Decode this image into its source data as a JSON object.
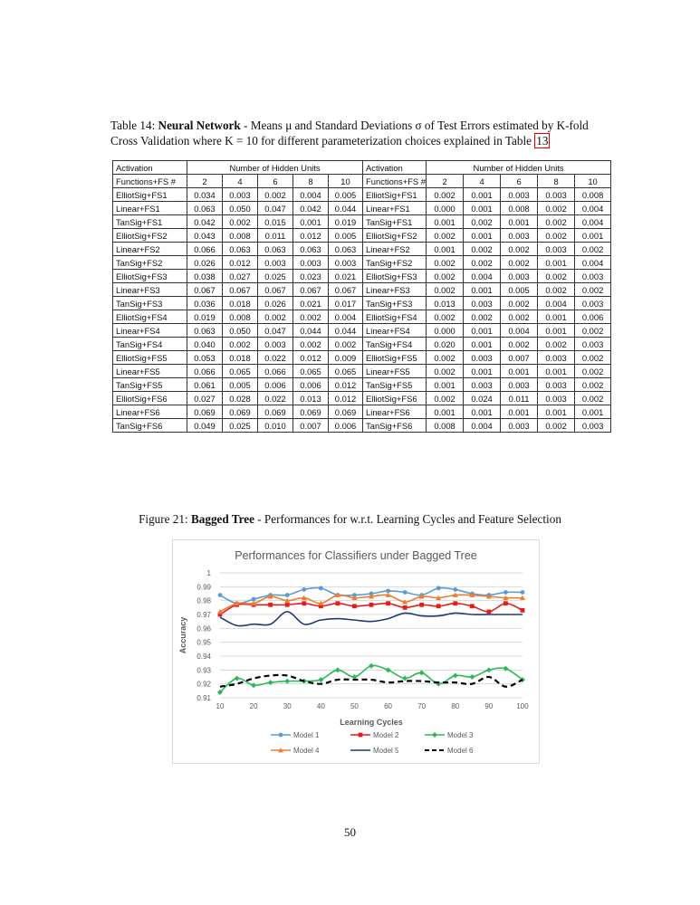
{
  "table_caption": {
    "label": "Table 14:",
    "bold": "Neural Network",
    "text": "- Means μ and Standard Deviations σ of Test Errors estimated by K-fold Cross Validation where K = 10 for different parameterization choices explained in Table",
    "ref": "13"
  },
  "table": {
    "header1": [
      "Activation",
      "Number of Hidden Units",
      "Activation",
      "Number of Hidden Units"
    ],
    "header2": [
      "Functions+FS #",
      "2",
      "4",
      "6",
      "8",
      "10",
      "Functions+FS #",
      "2",
      "4",
      "6",
      "8",
      "10"
    ],
    "rows": [
      [
        "ElliotSig+FS1",
        "0.034",
        "0.003",
        "0.002",
        "0.004",
        "0.005",
        "ElliotSig+FS1",
        "0.002",
        "0.001",
        "0.003",
        "0.003",
        "0.008"
      ],
      [
        "Linear+FS1",
        "0.063",
        "0.050",
        "0.047",
        "0.042",
        "0.044",
        "Linear+FS1",
        "0.000",
        "0.001",
        "0.008",
        "0.002",
        "0.004"
      ],
      [
        "TanSig+FS1",
        "0.042",
        "0.002",
        "0.015",
        "0.001",
        "0.019",
        "TanSig+FS1",
        "0.001",
        "0.002",
        "0.001",
        "0.002",
        "0.004"
      ],
      [
        "ElliotSig+FS2",
        "0.043",
        "0.008",
        "0.011",
        "0.012",
        "0.005",
        "ElliotSig+FS2",
        "0.002",
        "0.001",
        "0.003",
        "0.002",
        "0.001"
      ],
      [
        "Linear+FS2",
        "0.066",
        "0.063",
        "0.063",
        "0.063",
        "0.063",
        "Linear+FS2",
        "0.001",
        "0.002",
        "0.002",
        "0.003",
        "0.002"
      ],
      [
        "TanSig+FS2",
        "0.026",
        "0.012",
        "0.003",
        "0.003",
        "0.003",
        "TanSig+FS2",
        "0.002",
        "0.002",
        "0.002",
        "0.001",
        "0.004"
      ],
      [
        "ElliotSig+FS3",
        "0.038",
        "0.027",
        "0.025",
        "0.023",
        "0.021",
        "ElliotSig+FS3",
        "0.002",
        "0.004",
        "0.003",
        "0.002",
        "0.003"
      ],
      [
        "Linear+FS3",
        "0.067",
        "0.067",
        "0.067",
        "0.067",
        "0.067",
        "Linear+FS3",
        "0.002",
        "0.001",
        "0.005",
        "0.002",
        "0.002"
      ],
      [
        "TanSig+FS3",
        "0.036",
        "0.018",
        "0.026",
        "0.021",
        "0.017",
        "TanSig+FS3",
        "0.013",
        "0.003",
        "0.002",
        "0.004",
        "0.003"
      ],
      [
        "ElliotSig+FS4",
        "0.019",
        "0.008",
        "0.002",
        "0.002",
        "0.004",
        "ElliotSig+FS4",
        "0.002",
        "0.002",
        "0.002",
        "0.001",
        "0.006"
      ],
      [
        "Linear+FS4",
        "0.063",
        "0.050",
        "0.047",
        "0.044",
        "0.044",
        "Linear+FS4",
        "0.000",
        "0.001",
        "0.004",
        "0.001",
        "0.002"
      ],
      [
        "TanSig+FS4",
        "0.040",
        "0.002",
        "0.003",
        "0.002",
        "0.002",
        "TanSig+FS4",
        "0.020",
        "0.001",
        "0.002",
        "0.002",
        "0.003"
      ],
      [
        "ElliotSig+FS5",
        "0.053",
        "0.018",
        "0.022",
        "0.012",
        "0.009",
        "ElliotSig+FS5",
        "0.002",
        "0.003",
        "0.007",
        "0.003",
        "0.002"
      ],
      [
        "Linear+FS5",
        "0.066",
        "0.065",
        "0.066",
        "0.065",
        "0.065",
        "Linear+FS5",
        "0.002",
        "0.001",
        "0.001",
        "0.001",
        "0.002"
      ],
      [
        "TanSig+FS5",
        "0.061",
        "0.005",
        "0.006",
        "0.006",
        "0.012",
        "TanSig+FS5",
        "0.001",
        "0.003",
        "0.003",
        "0.003",
        "0.002"
      ],
      [
        "ElliotSig+FS6",
        "0.027",
        "0.028",
        "0.022",
        "0.013",
        "0.012",
        "ElliotSig+FS6",
        "0.002",
        "0.024",
        "0.011",
        "0.003",
        "0.002"
      ],
      [
        "Linear+FS6",
        "0.069",
        "0.069",
        "0.069",
        "0.069",
        "0.069",
        "Linear+FS6",
        "0.001",
        "0.001",
        "0.001",
        "0.001",
        "0.001"
      ],
      [
        "TanSig+FS6",
        "0.049",
        "0.025",
        "0.010",
        "0.007",
        "0.006",
        "TanSig+FS6",
        "0.008",
        "0.004",
        "0.003",
        "0.002",
        "0.003"
      ]
    ]
  },
  "figure_caption": {
    "label": "Figure 21:",
    "bold": "Bagged Tree",
    "text": "- Performances for w.r.t. Learning Cycles and Feature Selection"
  },
  "chart_data": {
    "type": "line",
    "title": "Performances for Classifiers under Bagged Tree",
    "xlabel": "Learning Cycles",
    "ylabel": "Accuracy",
    "x": [
      10,
      15,
      20,
      25,
      30,
      35,
      40,
      45,
      50,
      55,
      60,
      65,
      70,
      75,
      80,
      85,
      90,
      95,
      100
    ],
    "x_ticks": [
      "10",
      "20",
      "30",
      "40",
      "50",
      "60",
      "70",
      "80",
      "90",
      "100"
    ],
    "x_tick_values": [
      10,
      20,
      30,
      40,
      50,
      60,
      70,
      80,
      90,
      100
    ],
    "y_ticks": [
      "0.91",
      "0.92",
      "0.93",
      "0.94",
      "0.95",
      "0.96",
      "0.97",
      "0.98",
      "0.99",
      "1"
    ],
    "y_tick_values": [
      0.91,
      0.92,
      0.93,
      0.94,
      0.95,
      0.96,
      0.97,
      0.98,
      0.99,
      1
    ],
    "xlim": [
      10,
      100
    ],
    "ylim": [
      0.91,
      1
    ],
    "grid": true,
    "legend_position": "bottom",
    "series": [
      {
        "name": "Model 1",
        "color": "#5b9bd5",
        "marker": "circle",
        "dash": "solid",
        "values": [
          0.984,
          0.978,
          0.981,
          0.984,
          0.984,
          0.988,
          0.989,
          0.984,
          0.984,
          0.985,
          0.987,
          0.986,
          0.984,
          0.989,
          0.988,
          0.985,
          0.984,
          0.986,
          0.986
        ]
      },
      {
        "name": "Model 2",
        "color": "#e51c1c",
        "marker": "square",
        "dash": "solid",
        "values": [
          0.97,
          0.977,
          0.977,
          0.977,
          0.977,
          0.978,
          0.976,
          0.978,
          0.976,
          0.977,
          0.978,
          0.975,
          0.977,
          0.976,
          0.978,
          0.976,
          0.972,
          0.978,
          0.973
        ]
      },
      {
        "name": "Model 3",
        "color": "#2eb85c",
        "marker": "diamond",
        "dash": "solid",
        "values": [
          0.914,
          0.924,
          0.919,
          0.921,
          0.922,
          0.922,
          0.923,
          0.93,
          0.925,
          0.933,
          0.93,
          0.924,
          0.928,
          0.92,
          0.926,
          0.925,
          0.93,
          0.931,
          0.923
        ]
      },
      {
        "name": "Model 4",
        "color": "#ed7d31",
        "marker": "triangle",
        "dash": "solid",
        "values": [
          0.972,
          0.978,
          0.978,
          0.983,
          0.98,
          0.982,
          0.978,
          0.984,
          0.982,
          0.983,
          0.984,
          0.979,
          0.983,
          0.982,
          0.984,
          0.984,
          0.983,
          0.982,
          0.982
        ]
      },
      {
        "name": "Model 5",
        "color": "#1f3a7a",
        "marker": "none",
        "dash": "solid",
        "values": [
          0.968,
          0.962,
          0.963,
          0.963,
          0.972,
          0.963,
          0.966,
          0.967,
          0.966,
          0.965,
          0.967,
          0.971,
          0.969,
          0.969,
          0.971,
          0.97,
          0.97,
          0.97,
          0.97
        ]
      },
      {
        "name": "Model 6",
        "color": "#000000",
        "marker": "none",
        "dash": "dashed",
        "values": [
          0.918,
          0.92,
          0.924,
          0.926,
          0.926,
          0.922,
          0.92,
          0.923,
          0.923,
          0.923,
          0.921,
          0.922,
          0.922,
          0.921,
          0.921,
          0.92,
          0.925,
          0.918,
          0.923
        ]
      }
    ]
  },
  "page_number": "50"
}
